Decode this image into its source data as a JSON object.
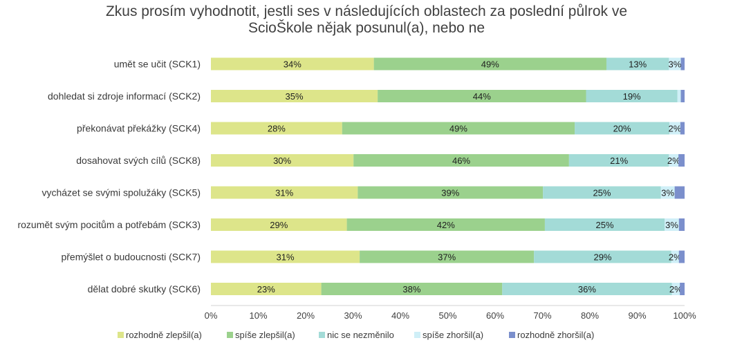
{
  "chart_data": {
    "type": "bar",
    "orientation": "horizontal",
    "stacked": true,
    "title": "Zkus prosím vyhodnotit, jestli ses v následujících oblastech za poslední půlrok ve ScioŠkole nějak posunul(a), nebo ne",
    "title_lines": [
      "Zkus prosím vyhodnotit, jestli ses v následujících oblastech za poslední půlrok ve",
      "ScioŠkole nějak posunul(a), nebo ne"
    ],
    "categories": [
      "umět se učit (SCK1)",
      "dohledat si zdroje informací (SCK2)",
      "překonávat překážky (SCK4)",
      "dosahovat svých cílů (SCK8)",
      "vycházet se svými spolužáky (SCK5)",
      "rozumět svým pocitům a potřebám (SCK3)",
      "přemýšlet o budoucnosti (SCK7)",
      "dělat dobré skutky (SCK6)"
    ],
    "series": [
      {
        "name": "rozhodně zlepšil(a)",
        "color": "#dde58a",
        "values": [
          34.4,
          35.2,
          27.7,
          30.1,
          31.0,
          28.7,
          31.4,
          23.3
        ],
        "labels": [
          "34%",
          "35%",
          "28%",
          "30%",
          "31%",
          "29%",
          "31%",
          "23%"
        ]
      },
      {
        "name": "spíše zlepšil(a)",
        "color": "#9bd18d",
        "values": [
          49.1,
          44.0,
          49.1,
          45.5,
          39.1,
          41.8,
          36.8,
          38.2
        ],
        "labels": [
          "49%",
          "44%",
          "49%",
          "46%",
          "39%",
          "42%",
          "37%",
          "38%"
        ]
      },
      {
        "name": "nic se nezměnilo",
        "color": "#a3dbd7",
        "values": [
          13.2,
          19.3,
          20.0,
          21.1,
          24.9,
          25.3,
          29.0,
          35.8
        ],
        "labels": [
          "13%",
          "19%",
          "20%",
          "21%",
          "25%",
          "25%",
          "29%",
          "36%"
        ]
      },
      {
        "name": "spíše zhoršil(a)",
        "color": "#cfeff7",
        "values": [
          2.5,
          0.7,
          2.3,
          2.0,
          2.9,
          3.0,
          1.6,
          1.7
        ],
        "labels": [
          "3%",
          "",
          "2%",
          "2%",
          "3%",
          "3%",
          "2%",
          "2%"
        ]
      },
      {
        "name": "rozhodně zhoršil(a)",
        "color": "#7b8fcc",
        "values": [
          0.8,
          0.8,
          0.9,
          1.3,
          2.1,
          1.2,
          1.2,
          1.0
        ],
        "labels": [
          "",
          "",
          "",
          "",
          "",
          "",
          "",
          ""
        ]
      }
    ],
    "xlim": [
      0,
      100
    ],
    "xticks": [
      "0%",
      "10%",
      "20%",
      "30%",
      "40%",
      "50%",
      "60%",
      "70%",
      "80%",
      "90%",
      "100%"
    ],
    "grid": false,
    "legend_position": "bottom"
  }
}
